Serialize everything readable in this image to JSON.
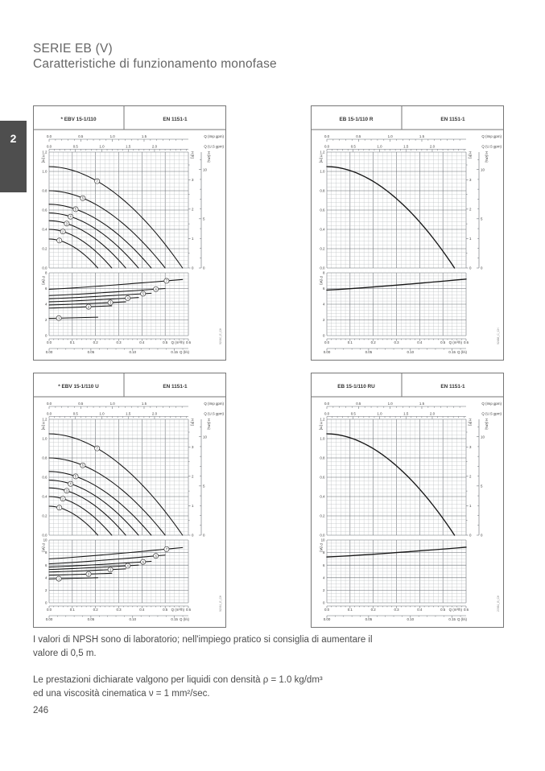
{
  "page": {
    "number": "246",
    "section_tab": "2"
  },
  "title": {
    "line1": "SERIE EB (V)",
    "line2": "Caratteristiche di funzionamento monofase"
  },
  "notes": {
    "npsh_1": "I valori di NPSH sono di laboratorio; nell'impiego pratico si consiglia di aumentare il",
    "npsh_2": "valore di 0,5 m.",
    "perf_1": "Le prestazioni dichiarate valgono per liquidi con densità ρ = 1.0 kg/dm³",
    "perf_2": "ed una viscosità cinematica ν = 1 mm²/sec."
  },
  "chart_data": [
    {
      "id": "ebv-15-1-110",
      "type": "line",
      "header": {
        "model": "* EBV 15-1/110",
        "standard": "EN 1151-1"
      },
      "code": "92060_E_CH",
      "curve_exp": 1.9,
      "axes": {
        "q_max_m3h": 0.6,
        "top1": {
          "label": "Q (Imp gpm)",
          "units_per_m3h": 3.666,
          "ticks": [
            0,
            0.5,
            1,
            1.5
          ],
          "minor_step": 0.1
        },
        "top2": {
          "label": "Q (U.S gpm)",
          "units_per_m3h": 4.403,
          "ticks": [
            0,
            0.5,
            1,
            1.5,
            2
          ],
          "minor_step": 0.1
        },
        "bottom1": {
          "label": "Q (m³/h)",
          "units_per_m3h": 1,
          "ticks": [
            0,
            0.1,
            0.2,
            0.3,
            0.4,
            0.5,
            0.6
          ],
          "minor_step": 0.02,
          "decimals": 1
        },
        "bottom2": {
          "label": "Q (l/s)",
          "units_per_m3h": 0.2778,
          "ticks": [
            0,
            0.05,
            0.1,
            0.15
          ],
          "minor_step": 0.01,
          "decimals": 2
        },
        "h": {
          "label": "H [m]",
          "max": 1.2,
          "ticks": [
            0,
            0.2,
            0.4,
            0.6,
            0.8,
            1,
            1.2
          ]
        },
        "h_ft": {
          "label": "H [ft]",
          "units_per_m": 3.2808,
          "ticks": [
            0,
            1,
            2,
            3
          ],
          "minor_step": 0.5
        },
        "h_kpa": {
          "label": "H (kPa)",
          "units_per_m": 9.81,
          "ticks": [
            0,
            5,
            10
          ],
          "minor_step": 1
        },
        "p": {
          "label": "P (W)",
          "max": 8,
          "ticks": [
            0,
            2,
            4,
            6,
            8
          ],
          "minor_step": 0.4
        }
      },
      "h_curves": [
        {
          "label": "7",
          "h0": 1.05,
          "q_end": 0.575,
          "label_at": 0.36
        },
        {
          "label": "6",
          "h0": 0.8,
          "q_end": 0.5,
          "label_at": 0.29
        },
        {
          "label": "5",
          "h0": 0.66,
          "q_end": 0.44,
          "label_at": 0.26
        },
        {
          "label": "4",
          "h0": 0.57,
          "q_end": 0.385,
          "label_at": 0.24
        },
        {
          "label": "3",
          "h0": 0.49,
          "q_end": 0.33,
          "label_at": 0.23
        },
        {
          "label": "2",
          "h0": 0.4,
          "q_end": 0.27,
          "label_at": 0.22
        },
        {
          "label": "1",
          "h0": 0.3,
          "q_end": 0.21,
          "label_at": 0.21
        }
      ],
      "p_curves": [
        {
          "label": "7",
          "p0": 5.9,
          "p1": 7.15,
          "q_end": 0.575,
          "label_at": 0.88
        },
        {
          "label": "6",
          "p0": 5.1,
          "p1": 6.0,
          "q_end": 0.5,
          "label_at": 0.92
        },
        {
          "label": "5",
          "p0": 4.7,
          "p1": 5.4,
          "q_end": 0.44,
          "label_at": 0.92
        },
        {
          "label": "4",
          "p0": 4.3,
          "p1": 4.85,
          "q_end": 0.385,
          "label_at": 0.88
        },
        {
          "label": "3",
          "p0": 3.9,
          "p1": 4.3,
          "q_end": 0.33,
          "label_at": 0.8
        },
        {
          "label": "2",
          "p0": 3.5,
          "p1": 3.8,
          "q_end": 0.27,
          "label_at": 0.63
        },
        {
          "label": "1",
          "p0": 2.2,
          "p1": 2.35,
          "q_end": 0.21,
          "label_at": 0.2
        }
      ]
    },
    {
      "id": "eb-15-1-110-r",
      "type": "line",
      "header": {
        "model": "EB 15-1/110 R",
        "standard": "EN 1151-1"
      },
      "code": "92488_C_CH",
      "curve_exp": 1.9,
      "axes": {
        "q_max_m3h": 0.6,
        "top1": {
          "label": "Q (Imp gpm)",
          "units_per_m3h": 3.666,
          "ticks": [
            0,
            0.5,
            1,
            1.5
          ],
          "minor_step": 0.1
        },
        "top2": {
          "label": "Q (U.S gpm)",
          "units_per_m3h": 4.403,
          "ticks": [
            0,
            0.5,
            1,
            1.5,
            2
          ],
          "minor_step": 0.1
        },
        "bottom1": {
          "label": "Q (m³/h)",
          "units_per_m3h": 1,
          "ticks": [
            0,
            0.1,
            0.2,
            0.3,
            0.4,
            0.5,
            0.6
          ],
          "minor_step": 0.02,
          "decimals": 1
        },
        "bottom2": {
          "label": "Q (l/s)",
          "units_per_m3h": 0.2778,
          "ticks": [
            0,
            0.05,
            0.1,
            0.15
          ],
          "minor_step": 0.01,
          "decimals": 2
        },
        "h": {
          "label": "H [m]",
          "max": 1.2,
          "ticks": [
            0,
            0.2,
            0.4,
            0.6,
            0.8,
            1,
            1.2
          ]
        },
        "h_ft": {
          "label": "H [ft]",
          "units_per_m": 3.2808,
          "ticks": [
            0,
            1,
            2,
            3
          ],
          "minor_step": 0.5
        },
        "h_kpa": {
          "label": "H (kPa)",
          "units_per_m": 9.81,
          "ticks": [
            0,
            5,
            10
          ],
          "minor_step": 1
        },
        "p": {
          "label": "P (W)",
          "max": 8,
          "ticks": [
            0,
            2,
            4,
            6,
            8
          ],
          "minor_step": 0.4
        }
      },
      "h_curves": [
        {
          "label": null,
          "h0": 1.05,
          "q_end": 0.55
        }
      ],
      "p_curves": [
        {
          "label": null,
          "p0": 5.8,
          "p1": 7.2,
          "q_end": 0.6
        }
      ]
    },
    {
      "id": "ebv-15-1-110-u",
      "type": "line",
      "header": {
        "model": "* EBV 15-1/110 U",
        "standard": "EN 1151-1"
      },
      "code": "92061_E_CH",
      "curve_exp": 1.9,
      "axes": {
        "q_max_m3h": 0.6,
        "top1": {
          "label": "Q (Imp gpm)",
          "units_per_m3h": 3.666,
          "ticks": [
            0,
            0.5,
            1,
            1.5
          ],
          "minor_step": 0.1
        },
        "top2": {
          "label": "Q (U.S gpm)",
          "units_per_m3h": 4.403,
          "ticks": [
            0,
            0.5,
            1,
            1.5,
            2
          ],
          "minor_step": 0.1
        },
        "bottom1": {
          "label": "Q (m³/h)",
          "units_per_m3h": 1,
          "ticks": [
            0,
            0.1,
            0.2,
            0.3,
            0.4,
            0.5,
            0.6
          ],
          "minor_step": 0.02,
          "decimals": 1
        },
        "bottom2": {
          "label": "Q (l/s)",
          "units_per_m3h": 0.2778,
          "ticks": [
            0,
            0.05,
            0.1,
            0.15
          ],
          "minor_step": 0.01,
          "decimals": 2
        },
        "h": {
          "label": "H [m]",
          "max": 1.2,
          "ticks": [
            0,
            0.2,
            0.4,
            0.6,
            0.8,
            1,
            1.2
          ]
        },
        "h_ft": {
          "label": "H [ft]",
          "units_per_m": 3.2808,
          "ticks": [
            0,
            1,
            2,
            3
          ],
          "minor_step": 0.5
        },
        "h_kpa": {
          "label": "H (kPa)",
          "units_per_m": 9.81,
          "ticks": [
            0,
            5,
            10
          ],
          "minor_step": 1
        },
        "p": {
          "label": "P (W)",
          "max": 10,
          "ticks": [
            0,
            2,
            4,
            6,
            8,
            10
          ],
          "minor_step": 0.5
        }
      },
      "h_curves": [
        {
          "label": "7",
          "h0": 1.05,
          "q_end": 0.575,
          "label_at": 0.36
        },
        {
          "label": "6",
          "h0": 0.8,
          "q_end": 0.5,
          "label_at": 0.29
        },
        {
          "label": "5",
          "h0": 0.66,
          "q_end": 0.44,
          "label_at": 0.26
        },
        {
          "label": "4",
          "h0": 0.57,
          "q_end": 0.385,
          "label_at": 0.24
        },
        {
          "label": "3",
          "h0": 0.49,
          "q_end": 0.33,
          "label_at": 0.23
        },
        {
          "label": "2",
          "h0": 0.4,
          "q_end": 0.27,
          "label_at": 0.22
        },
        {
          "label": "1",
          "h0": 0.3,
          "q_end": 0.21,
          "label_at": 0.21
        }
      ],
      "p_curves": [
        {
          "label": "7",
          "p0": 7.0,
          "p1": 8.8,
          "q_end": 0.575,
          "label_at": 0.88
        },
        {
          "label": "6",
          "p0": 6.2,
          "p1": 7.6,
          "q_end": 0.5,
          "label_at": 0.92
        },
        {
          "label": "5",
          "p0": 5.7,
          "p1": 6.6,
          "q_end": 0.44,
          "label_at": 0.92
        },
        {
          "label": "4",
          "p0": 5.3,
          "p1": 6.0,
          "q_end": 0.385,
          "label_at": 0.88
        },
        {
          "label": "3",
          "p0": 4.9,
          "p1": 5.4,
          "q_end": 0.33,
          "label_at": 0.8
        },
        {
          "label": "2",
          "p0": 4.4,
          "p1": 4.7,
          "q_end": 0.27,
          "label_at": 0.63
        },
        {
          "label": "1",
          "p0": 3.8,
          "p1": 4.0,
          "q_end": 0.21,
          "label_at": 0.2
        }
      ]
    },
    {
      "id": "eb-15-1-110-ru",
      "type": "line",
      "header": {
        "model": "EB 15-1/110 RU",
        "standard": "EN 1151-1"
      },
      "code": "20981_B_CH",
      "curve_exp": 1.9,
      "axes": {
        "q_max_m3h": 0.6,
        "top1": {
          "label": "Q (Imp gpm)",
          "units_per_m3h": 3.666,
          "ticks": [
            0,
            0.5,
            1,
            1.5
          ],
          "minor_step": 0.1
        },
        "top2": {
          "label": "Q (U.S gpm)",
          "units_per_m3h": 4.403,
          "ticks": [
            0,
            0.5,
            1,
            1.5,
            2
          ],
          "minor_step": 0.1
        },
        "bottom1": {
          "label": "Q (m³/h)",
          "units_per_m3h": 1,
          "ticks": [
            0,
            0.1,
            0.2,
            0.3,
            0.4,
            0.5,
            0.6
          ],
          "minor_step": 0.02,
          "decimals": 1
        },
        "bottom2": {
          "label": "Q (l/s)",
          "units_per_m3h": 0.2778,
          "ticks": [
            0,
            0.05,
            0.1,
            0.15
          ],
          "minor_step": 0.01,
          "decimals": 2
        },
        "h": {
          "label": "H [m]",
          "max": 1.2,
          "ticks": [
            0,
            0.2,
            0.4,
            0.6,
            0.8,
            1,
            1.2
          ]
        },
        "h_ft": {
          "label": "H [ft]",
          "units_per_m": 3.2808,
          "ticks": [
            0,
            1,
            2,
            3
          ],
          "minor_step": 0.5
        },
        "h_kpa": {
          "label": "H (kPa)",
          "units_per_m": 9.81,
          "ticks": [
            0,
            5,
            10
          ],
          "minor_step": 1
        },
        "p": {
          "label": "P (W)",
          "max": 10,
          "ticks": [
            0,
            2,
            4,
            6,
            8,
            10
          ],
          "minor_step": 0.5
        }
      },
      "h_curves": [
        {
          "label": null,
          "h0": 1.05,
          "q_end": 0.55
        }
      ],
      "p_curves": [
        {
          "label": null,
          "p0": 7.3,
          "p1": 8.85,
          "q_end": 0.6
        }
      ]
    }
  ]
}
